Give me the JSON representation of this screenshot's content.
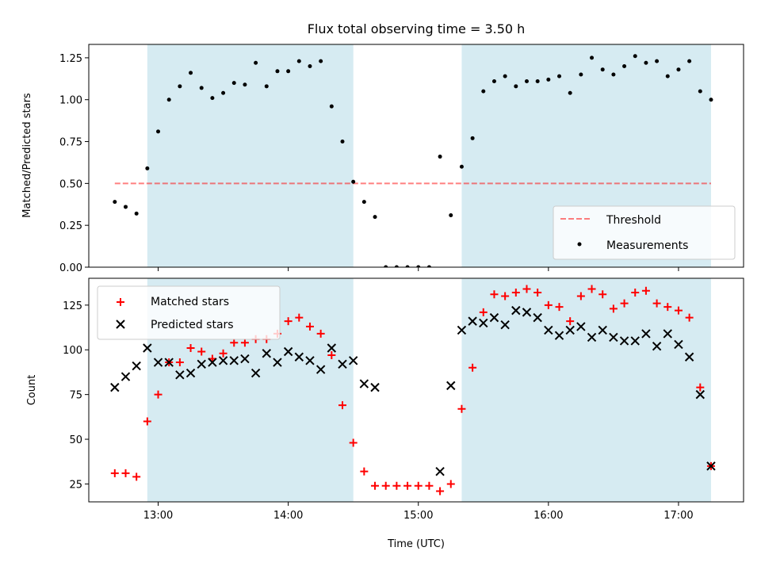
{
  "colors": {
    "shade": "#add8e6",
    "threshold": "#ff0000",
    "measurement": "#000000",
    "matched": "#ff0000",
    "predicted": "#000000",
    "axes": "#000000"
  },
  "chart_data": [
    {
      "type": "scatter",
      "title": "Flux total observing time = 3.50 h",
      "xlabel": "",
      "ylabel": "Matched/Predicted stars",
      "ylim": [
        0,
        1.33
      ],
      "yticks": [
        0.0,
        0.25,
        0.5,
        0.75,
        1.0,
        1.25
      ],
      "ytick_labels": [
        "0.00",
        "0.25",
        "0.50",
        "0.75",
        "1.00",
        "1.25"
      ],
      "xlim": [
        "12:28",
        "17:30"
      ],
      "shaded_intervals": [
        [
          "12:55",
          "14:30"
        ],
        [
          "15:20",
          "17:15"
        ]
      ],
      "threshold": {
        "name": "Threshold",
        "value": 0.5,
        "x_start": "12:40",
        "x_end": "17:15",
        "style": "dashed"
      },
      "series": [
        {
          "name": "Measurements",
          "points": [
            [
              "12:40",
              0.39
            ],
            [
              "12:45",
              0.36
            ],
            [
              "12:50",
              0.32
            ],
            [
              "12:55",
              0.59
            ],
            [
              "13:00",
              0.81
            ],
            [
              "13:05",
              1.0
            ],
            [
              "13:10",
              1.08
            ],
            [
              "13:15",
              1.16
            ],
            [
              "13:20",
              1.07
            ],
            [
              "13:25",
              1.01
            ],
            [
              "13:30",
              1.04
            ],
            [
              "13:35",
              1.1
            ],
            [
              "13:40",
              1.09
            ],
            [
              "13:45",
              1.22
            ],
            [
              "13:50",
              1.08
            ],
            [
              "13:55",
              1.17
            ],
            [
              "14:00",
              1.17
            ],
            [
              "14:05",
              1.23
            ],
            [
              "14:10",
              1.2
            ],
            [
              "14:15",
              1.23
            ],
            [
              "14:20",
              0.96
            ],
            [
              "14:25",
              0.75
            ],
            [
              "14:30",
              0.51
            ],
            [
              "14:35",
              0.39
            ],
            [
              "14:40",
              0.3
            ],
            [
              "14:45",
              0.0
            ],
            [
              "14:50",
              0.0
            ],
            [
              "14:55",
              0.0
            ],
            [
              "15:00",
              0.0
            ],
            [
              "15:05",
              0.0
            ],
            [
              "15:10",
              0.66
            ],
            [
              "15:15",
              0.31
            ],
            [
              "15:20",
              0.6
            ],
            [
              "15:25",
              0.77
            ],
            [
              "15:30",
              1.05
            ],
            [
              "15:35",
              1.11
            ],
            [
              "15:40",
              1.14
            ],
            [
              "15:45",
              1.08
            ],
            [
              "15:50",
              1.11
            ],
            [
              "15:55",
              1.11
            ],
            [
              "16:00",
              1.12
            ],
            [
              "16:05",
              1.14
            ],
            [
              "16:10",
              1.04
            ],
            [
              "16:15",
              1.15
            ],
            [
              "16:20",
              1.25
            ],
            [
              "16:25",
              1.18
            ],
            [
              "16:30",
              1.15
            ],
            [
              "16:35",
              1.2
            ],
            [
              "16:40",
              1.26
            ],
            [
              "16:45",
              1.22
            ],
            [
              "16:50",
              1.23
            ],
            [
              "16:55",
              1.14
            ],
            [
              "17:00",
              1.18
            ],
            [
              "17:05",
              1.23
            ],
            [
              "17:10",
              1.05
            ],
            [
              "17:15",
              1.0
            ]
          ]
        }
      ],
      "legend": {
        "placement": "lower-right",
        "entries": [
          "Threshold",
          "Measurements"
        ]
      }
    },
    {
      "type": "scatter",
      "title": "",
      "xlabel": "Time (UTC)",
      "ylabel": "Count",
      "ylim": [
        15,
        140
      ],
      "yticks": [
        25,
        50,
        75,
        100,
        125
      ],
      "ytick_labels": [
        "25",
        "50",
        "75",
        "100",
        "125"
      ],
      "xlim": [
        "12:28",
        "17:30"
      ],
      "xticks": [
        "13:00",
        "14:00",
        "15:00",
        "16:00",
        "17:00"
      ],
      "shaded_intervals": [
        [
          "12:55",
          "14:30"
        ],
        [
          "15:20",
          "17:15"
        ]
      ],
      "series": [
        {
          "name": "Matched stars",
          "marker": "plus",
          "points": [
            [
              "12:40",
              31
            ],
            [
              "12:45",
              31
            ],
            [
              "12:50",
              29
            ],
            [
              "12:55",
              60
            ],
            [
              "13:00",
              75
            ],
            [
              "13:05",
              93
            ],
            [
              "13:10",
              93
            ],
            [
              "13:15",
              101
            ],
            [
              "13:20",
              99
            ],
            [
              "13:25",
              95
            ],
            [
              "13:30",
              98
            ],
            [
              "13:35",
              104
            ],
            [
              "13:40",
              104
            ],
            [
              "13:45",
              106
            ],
            [
              "13:50",
              106
            ],
            [
              "13:55",
              109
            ],
            [
              "14:00",
              116
            ],
            [
              "14:05",
              118
            ],
            [
              "14:10",
              113
            ],
            [
              "14:15",
              109
            ],
            [
              "14:20",
              97
            ],
            [
              "14:25",
              69
            ],
            [
              "14:30",
              48
            ],
            [
              "14:35",
              32
            ],
            [
              "14:40",
              24
            ],
            [
              "14:45",
              24
            ],
            [
              "14:50",
              24
            ],
            [
              "14:55",
              24
            ],
            [
              "15:00",
              24
            ],
            [
              "15:05",
              24
            ],
            [
              "15:10",
              21
            ],
            [
              "15:15",
              25
            ],
            [
              "15:20",
              67
            ],
            [
              "15:25",
              90
            ],
            [
              "15:30",
              121
            ],
            [
              "15:35",
              131
            ],
            [
              "15:40",
              130
            ],
            [
              "15:45",
              132
            ],
            [
              "15:50",
              134
            ],
            [
              "15:55",
              132
            ],
            [
              "16:00",
              125
            ],
            [
              "16:05",
              124
            ],
            [
              "16:10",
              116
            ],
            [
              "16:15",
              130
            ],
            [
              "16:20",
              134
            ],
            [
              "16:25",
              131
            ],
            [
              "16:30",
              123
            ],
            [
              "16:35",
              126
            ],
            [
              "16:40",
              132
            ],
            [
              "16:45",
              133
            ],
            [
              "16:50",
              126
            ],
            [
              "16:55",
              124
            ],
            [
              "17:00",
              122
            ],
            [
              "17:05",
              118
            ],
            [
              "17:10",
              79
            ],
            [
              "17:15",
              35
            ]
          ]
        },
        {
          "name": "Predicted stars",
          "marker": "x",
          "points": [
            [
              "12:40",
              79
            ],
            [
              "12:45",
              85
            ],
            [
              "12:50",
              91
            ],
            [
              "12:55",
              101
            ],
            [
              "13:00",
              93
            ],
            [
              "13:05",
              93
            ],
            [
              "13:10",
              86
            ],
            [
              "13:15",
              87
            ],
            [
              "13:20",
              92
            ],
            [
              "13:25",
              93
            ],
            [
              "13:30",
              94
            ],
            [
              "13:35",
              94
            ],
            [
              "13:40",
              95
            ],
            [
              "13:45",
              87
            ],
            [
              "13:50",
              98
            ],
            [
              "13:55",
              93
            ],
            [
              "14:00",
              99
            ],
            [
              "14:05",
              96
            ],
            [
              "14:10",
              94
            ],
            [
              "14:15",
              89
            ],
            [
              "14:20",
              101
            ],
            [
              "14:25",
              92
            ],
            [
              "14:30",
              94
            ],
            [
              "14:35",
              81
            ],
            [
              "14:40",
              79
            ],
            [
              "15:10",
              32
            ],
            [
              "15:15",
              80
            ],
            [
              "15:20",
              111
            ],
            [
              "15:25",
              116
            ],
            [
              "15:30",
              115
            ],
            [
              "15:35",
              118
            ],
            [
              "15:40",
              114
            ],
            [
              "15:45",
              122
            ],
            [
              "15:50",
              121
            ],
            [
              "15:55",
              118
            ],
            [
              "16:00",
              111
            ],
            [
              "16:05",
              108
            ],
            [
              "16:10",
              111
            ],
            [
              "16:15",
              113
            ],
            [
              "16:20",
              107
            ],
            [
              "16:25",
              111
            ],
            [
              "16:30",
              107
            ],
            [
              "16:35",
              105
            ],
            [
              "16:40",
              105
            ],
            [
              "16:45",
              109
            ],
            [
              "16:50",
              102
            ],
            [
              "16:55",
              109
            ],
            [
              "17:00",
              103
            ],
            [
              "17:05",
              96
            ],
            [
              "17:10",
              75
            ],
            [
              "17:15",
              35
            ]
          ]
        }
      ],
      "legend": {
        "placement": "upper-left",
        "entries": [
          "Matched stars",
          "Predicted stars"
        ]
      }
    }
  ]
}
